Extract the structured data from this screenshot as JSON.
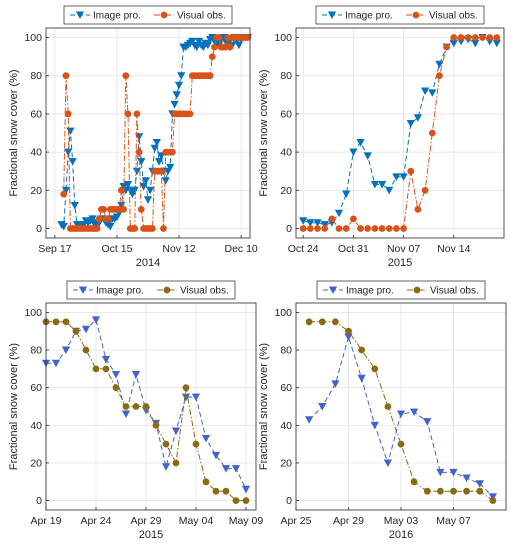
{
  "chart_data": [
    {
      "type": "line",
      "ylabel": "Fractional snow cover (%)",
      "xlabel": "2014",
      "xlim": [
        "2014-09-13",
        "2014-12-14"
      ],
      "ylim": [
        -5,
        105
      ],
      "yticks": [
        0,
        20,
        40,
        60,
        80,
        100
      ],
      "xticks": [
        {
          "date": "2014-09-17",
          "label": "Sep 17"
        },
        {
          "date": "2014-10-15",
          "label": "Oct 15"
        },
        {
          "date": "2014-11-12",
          "label": "Nov 12"
        },
        {
          "date": "2014-12-10",
          "label": "Dec 10"
        }
      ],
      "grid": true,
      "legend_position": "top",
      "series": [
        {
          "name": "Image pro.",
          "color": "#0072BD",
          "marker": "triangle-down",
          "linestyle": "dashed",
          "x": [
            "2014-09-20",
            "2014-09-21",
            "2014-09-22",
            "2014-09-23",
            "2014-09-24",
            "2014-09-25",
            "2014-09-26",
            "2014-09-27",
            "2014-09-28",
            "2014-09-29",
            "2014-09-30",
            "2014-10-01",
            "2014-10-02",
            "2014-10-03",
            "2014-10-04",
            "2014-10-05",
            "2014-10-06",
            "2014-10-07",
            "2014-10-08",
            "2014-10-09",
            "2014-10-10",
            "2014-10-11",
            "2014-10-12",
            "2014-10-13",
            "2014-10-14",
            "2014-10-15",
            "2014-10-16",
            "2014-10-17",
            "2014-10-18",
            "2014-10-19",
            "2014-10-20",
            "2014-10-21",
            "2014-10-22",
            "2014-10-23",
            "2014-10-24",
            "2014-10-25",
            "2014-10-26",
            "2014-10-27",
            "2014-10-28",
            "2014-10-29",
            "2014-10-30",
            "2014-10-31",
            "2014-11-01",
            "2014-11-02",
            "2014-11-03",
            "2014-11-04",
            "2014-11-05",
            "2014-11-06",
            "2014-11-07",
            "2014-11-08",
            "2014-11-09",
            "2014-11-10",
            "2014-11-11",
            "2014-11-12",
            "2014-11-13",
            "2014-11-14",
            "2014-11-15",
            "2014-11-16",
            "2014-11-17",
            "2014-11-18",
            "2014-11-19",
            "2014-11-20",
            "2014-11-21",
            "2014-11-22",
            "2014-11-23",
            "2014-11-24",
            "2014-11-25",
            "2014-11-26",
            "2014-11-27",
            "2014-11-28",
            "2014-11-29",
            "2014-11-30",
            "2014-12-01",
            "2014-12-02",
            "2014-12-03",
            "2014-12-04",
            "2014-12-05",
            "2014-12-06",
            "2014-12-07",
            "2014-12-08",
            "2014-12-09",
            "2014-12-10",
            "2014-12-11",
            "2014-12-12",
            "2014-12-13"
          ],
          "y": [
            2,
            1,
            20,
            40,
            51,
            35,
            12,
            2,
            1,
            2,
            2,
            4,
            3,
            4,
            5,
            2,
            3,
            3,
            5,
            5,
            3,
            2,
            1,
            5,
            5,
            6,
            8,
            12,
            22,
            20,
            23,
            20,
            18,
            20,
            30,
            48,
            35,
            22,
            25,
            15,
            20,
            30,
            42,
            45,
            35,
            38,
            30,
            25,
            30,
            32,
            60,
            65,
            70,
            75,
            80,
            95,
            95,
            96,
            97,
            98,
            96,
            95,
            98,
            96,
            95,
            97,
            96,
            99,
            100,
            98,
            97,
            96,
            99,
            100,
            98,
            97,
            95,
            96,
            100,
            98,
            96,
            99,
            100,
            100,
            100
          ]
        },
        {
          "name": "Visual obs.",
          "color": "#D95319",
          "marker": "circle",
          "linestyle": "dashdot",
          "x": [
            "2014-09-21",
            "2014-09-22",
            "2014-09-23",
            "2014-09-24",
            "2014-09-25",
            "2014-09-26",
            "2014-09-27",
            "2014-09-28",
            "2014-09-29",
            "2014-09-30",
            "2014-10-01",
            "2014-10-02",
            "2014-10-03",
            "2014-10-04",
            "2014-10-05",
            "2014-10-06",
            "2014-10-07",
            "2014-10-08",
            "2014-10-09",
            "2014-10-10",
            "2014-10-11",
            "2014-10-12",
            "2014-10-13",
            "2014-10-14",
            "2014-10-15",
            "2014-10-16",
            "2014-10-17",
            "2014-10-18",
            "2014-10-19",
            "2014-10-20",
            "2014-10-21",
            "2014-10-22",
            "2014-10-23",
            "2014-10-24",
            "2014-10-25",
            "2014-10-26",
            "2014-10-27",
            "2014-10-28",
            "2014-10-29",
            "2014-10-30",
            "2014-10-31",
            "2014-11-01",
            "2014-11-02",
            "2014-11-03",
            "2014-11-04",
            "2014-11-05",
            "2014-11-06",
            "2014-11-07",
            "2014-11-08",
            "2014-11-09",
            "2014-11-10",
            "2014-11-11",
            "2014-11-12",
            "2014-11-13",
            "2014-11-14",
            "2014-11-15",
            "2014-11-16",
            "2014-11-17",
            "2014-11-18",
            "2014-11-19",
            "2014-11-20",
            "2014-11-21",
            "2014-11-22",
            "2014-11-23",
            "2014-11-24",
            "2014-11-25",
            "2014-11-26",
            "2014-11-27",
            "2014-11-28",
            "2014-11-29",
            "2014-11-30",
            "2014-12-01",
            "2014-12-02",
            "2014-12-03",
            "2014-12-04",
            "2014-12-05",
            "2014-12-06",
            "2014-12-07",
            "2014-12-08",
            "2014-12-09",
            "2014-12-10",
            "2014-12-11",
            "2014-12-12",
            "2014-12-13"
          ],
          "y": [
            18,
            80,
            60,
            0,
            0,
            0,
            0,
            0,
            0,
            0,
            0,
            0,
            0,
            0,
            0,
            0,
            5,
            10,
            10,
            5,
            5,
            10,
            10,
            10,
            10,
            10,
            20,
            10,
            80,
            60,
            0,
            0,
            0,
            60,
            40,
            10,
            0,
            0,
            0,
            0,
            0,
            30,
            30,
            30,
            30,
            0,
            40,
            40,
            40,
            40,
            60,
            60,
            60,
            60,
            60,
            60,
            60,
            60,
            80,
            80,
            80,
            80,
            80,
            80,
            80,
            80,
            80,
            90,
            95,
            100,
            100,
            95,
            95,
            95,
            100,
            95,
            100,
            100,
            100,
            100,
            100,
            100,
            100,
            100
          ]
        }
      ]
    },
    {
      "type": "line",
      "ylabel": "Fractional snow cover (%)",
      "xlabel": "2015",
      "xlim": [
        "2015-10-23",
        "2015-11-21"
      ],
      "ylim": [
        -5,
        105
      ],
      "yticks": [
        0,
        20,
        40,
        60,
        80,
        100
      ],
      "xticks": [
        {
          "date": "2015-10-24",
          "label": "Oct 24"
        },
        {
          "date": "2015-10-31",
          "label": "Oct 31"
        },
        {
          "date": "2015-11-07",
          "label": "Nov 07"
        },
        {
          "date": "2015-11-14",
          "label": "Nov 14"
        }
      ],
      "grid": true,
      "legend_position": "top",
      "series": [
        {
          "name": "Image pro.",
          "color": "#0072BD",
          "marker": "triangle-down",
          "linestyle": "dashed",
          "x": [
            "2015-10-24",
            "2015-10-25",
            "2015-10-26",
            "2015-10-27",
            "2015-10-28",
            "2015-10-29",
            "2015-10-30",
            "2015-10-31",
            "2015-11-01",
            "2015-11-02",
            "2015-11-03",
            "2015-11-04",
            "2015-11-05",
            "2015-11-06",
            "2015-11-07",
            "2015-11-08",
            "2015-11-09",
            "2015-11-10",
            "2015-11-11",
            "2015-11-12",
            "2015-11-13",
            "2015-11-14",
            "2015-11-15",
            "2015-11-16",
            "2015-11-17",
            "2015-11-18",
            "2015-11-19",
            "2015-11-20"
          ],
          "y": [
            4,
            3,
            3,
            2,
            3,
            8,
            18,
            40,
            45,
            38,
            23,
            23,
            20,
            27,
            27,
            55,
            58,
            72,
            71,
            86,
            95,
            97,
            98,
            99,
            97,
            100,
            98,
            97
          ]
        },
        {
          "name": "Visual obs.",
          "color": "#D95319",
          "marker": "circle",
          "linestyle": "dashdot",
          "x": [
            "2015-10-24",
            "2015-10-25",
            "2015-10-26",
            "2015-10-27",
            "2015-10-28",
            "2015-10-29",
            "2015-10-30",
            "2015-10-31",
            "2015-11-01",
            "2015-11-02",
            "2015-11-03",
            "2015-11-04",
            "2015-11-05",
            "2015-11-06",
            "2015-11-07",
            "2015-11-08",
            "2015-11-09",
            "2015-11-10",
            "2015-11-11",
            "2015-11-12",
            "2015-11-13",
            "2015-11-14",
            "2015-11-15",
            "2015-11-16",
            "2015-11-17",
            "2015-11-18",
            "2015-11-19",
            "2015-11-20"
          ],
          "y": [
            0,
            0,
            0,
            0,
            5,
            0,
            0,
            5,
            0,
            0,
            0,
            0,
            0,
            0,
            0,
            30,
            10,
            20,
            50,
            80,
            95,
            100,
            100,
            100,
            100,
            100,
            100,
            100
          ]
        }
      ]
    },
    {
      "type": "line",
      "ylabel": "Fractional snow cover (%)",
      "xlabel": "2015",
      "xlim": [
        "2015-04-19",
        "2015-05-10"
      ],
      "ylim": [
        -5,
        105
      ],
      "yticks": [
        0,
        20,
        40,
        60,
        80,
        100
      ],
      "xticks": [
        {
          "date": "2015-04-19",
          "label": "Apr 19"
        },
        {
          "date": "2015-04-24",
          "label": "Apr 24"
        },
        {
          "date": "2015-04-29",
          "label": "Apr 29"
        },
        {
          "date": "2015-05-04",
          "label": "May 04"
        },
        {
          "date": "2015-05-09",
          "label": "May 09"
        }
      ],
      "grid": true,
      "legend_position": "top",
      "series": [
        {
          "name": "Image pro.",
          "color": "#4064C9",
          "marker": "triangle-down",
          "linestyle": "dashed",
          "x": [
            "2015-04-19",
            "2015-04-20",
            "2015-04-21",
            "2015-04-22",
            "2015-04-23",
            "2015-04-24",
            "2015-04-25",
            "2015-04-26",
            "2015-04-27",
            "2015-04-28",
            "2015-04-29",
            "2015-04-30",
            "2015-05-01",
            "2015-05-02",
            "2015-05-03",
            "2015-05-04",
            "2015-05-05",
            "2015-05-06",
            "2015-05-07",
            "2015-05-08",
            "2015-05-09"
          ],
          "y": [
            73,
            73,
            80,
            90,
            91,
            96,
            75,
            67,
            46,
            67,
            48,
            41,
            18,
            37,
            55,
            55,
            33,
            24,
            17,
            17,
            6
          ]
        },
        {
          "name": "Visual obs.",
          "color": "#8C6A14",
          "marker": "circle",
          "linestyle": "dashdot",
          "x": [
            "2015-04-19",
            "2015-04-20",
            "2015-04-21",
            "2015-04-22",
            "2015-04-23",
            "2015-04-24",
            "2015-04-25",
            "2015-04-26",
            "2015-04-27",
            "2015-04-28",
            "2015-04-29",
            "2015-04-30",
            "2015-05-01",
            "2015-05-02",
            "2015-05-03",
            "2015-05-04",
            "2015-05-05",
            "2015-05-06",
            "2015-05-07",
            "2015-05-08",
            "2015-05-09"
          ],
          "y": [
            95,
            95,
            95,
            90,
            80,
            70,
            70,
            60,
            50,
            50,
            50,
            40,
            30,
            20,
            60,
            30,
            10,
            5,
            5,
            0,
            0
          ]
        }
      ]
    },
    {
      "type": "line",
      "ylabel": "Fractional snow cover (%)",
      "xlabel": "2016",
      "xlim": [
        "2016-04-25",
        "2016-05-11"
      ],
      "ylim": [
        -5,
        105
      ],
      "yticks": [
        0,
        20,
        40,
        60,
        80,
        100
      ],
      "xticks": [
        {
          "date": "2016-04-25",
          "label": "Apr 25"
        },
        {
          "date": "2016-04-29",
          "label": "Apr 29"
        },
        {
          "date": "2016-05-03",
          "label": "May 03"
        },
        {
          "date": "2016-05-07",
          "label": "May 07"
        }
      ],
      "grid": true,
      "legend_position": "top",
      "series": [
        {
          "name": "Image pro.",
          "color": "#4064C9",
          "marker": "triangle-down",
          "linestyle": "dashed",
          "x": [
            "2016-04-26",
            "2016-04-27",
            "2016-04-28",
            "2016-04-29",
            "2016-04-30",
            "2016-05-01",
            "2016-05-02",
            "2016-05-03",
            "2016-05-04",
            "2016-05-05",
            "2016-05-06",
            "2016-05-07",
            "2016-05-08",
            "2016-05-09",
            "2016-05-10"
          ],
          "y": [
            43,
            50,
            62,
            87,
            65,
            40,
            20,
            46,
            47,
            42,
            15,
            15,
            12,
            9,
            2
          ]
        },
        {
          "name": "Visual obs.",
          "color": "#8C6A14",
          "marker": "circle",
          "linestyle": "dashdot",
          "x": [
            "2016-04-26",
            "2016-04-27",
            "2016-04-28",
            "2016-04-29",
            "2016-04-30",
            "2016-05-01",
            "2016-05-02",
            "2016-05-03",
            "2016-05-04",
            "2016-05-05",
            "2016-05-06",
            "2016-05-07",
            "2016-05-08",
            "2016-05-09",
            "2016-05-10"
          ],
          "y": [
            95,
            95,
            95,
            90,
            80,
            70,
            50,
            30,
            10,
            5,
            5,
            5,
            5,
            5,
            0
          ]
        }
      ]
    }
  ]
}
